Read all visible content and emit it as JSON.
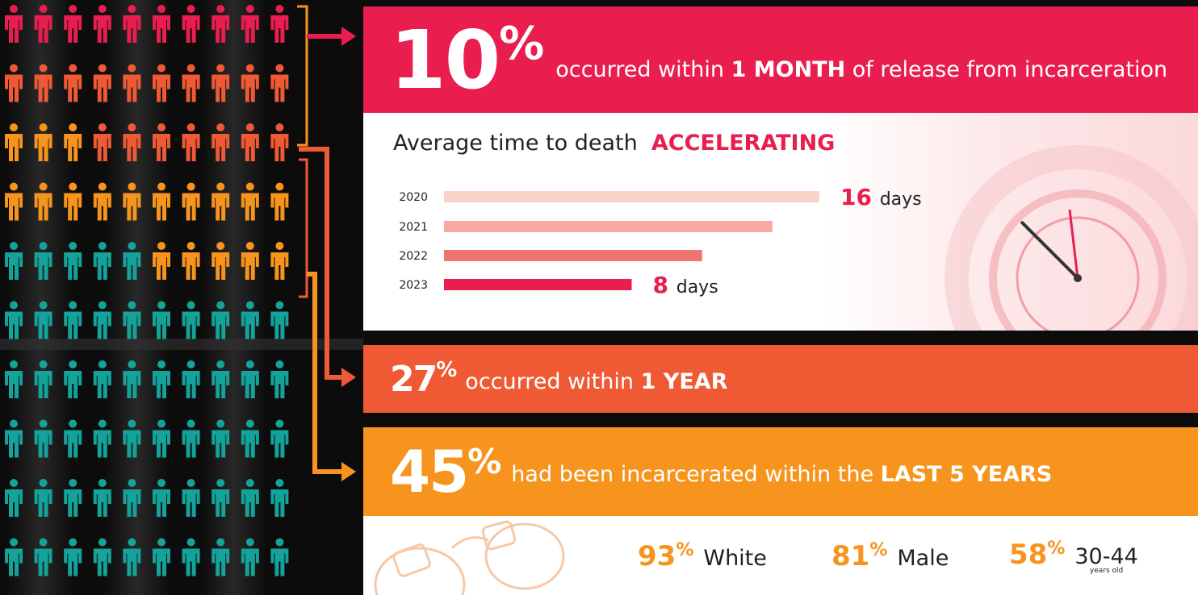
{
  "banner1": {
    "percent": 10,
    "unit": "%",
    "color": "#e91e4f",
    "text_before": "occurred within",
    "emphasis": "1 MONTH",
    "text_after": "of release from incarceration"
  },
  "trend": {
    "heading": "Average time to death",
    "emphasis": "ACCELERATING"
  },
  "chart_data": {
    "type": "bar",
    "orientation": "horizontal",
    "categories": [
      "2020",
      "2021",
      "2022",
      "2023"
    ],
    "values": [
      16,
      14,
      11,
      8
    ],
    "value_labels": [
      "16 days",
      null,
      null,
      "8 days"
    ],
    "colors": [
      "#f9d3cb",
      "#f5aaa2",
      "#ef7470",
      "#e91e4f"
    ],
    "xlim": [
      0,
      16
    ]
  },
  "banner2": {
    "percent": 27,
    "unit": "%",
    "color": "#ef5a35",
    "text_before": "occurred within",
    "emphasis": "1 YEAR"
  },
  "banner3": {
    "percent": 45,
    "unit": "%",
    "color": "#f7941d",
    "text_before": "had been incarcerated within the",
    "emphasis": "LAST 5 YEARS"
  },
  "people_grid": {
    "rest_color": "#13a39a"
  },
  "demographics": [
    {
      "percent": 93,
      "unit": "%",
      "label": "White"
    },
    {
      "percent": 81,
      "unit": "%",
      "label": "Male"
    },
    {
      "percent": 58,
      "unit": "%",
      "label": "30-44",
      "sublabel": "years old"
    }
  ]
}
